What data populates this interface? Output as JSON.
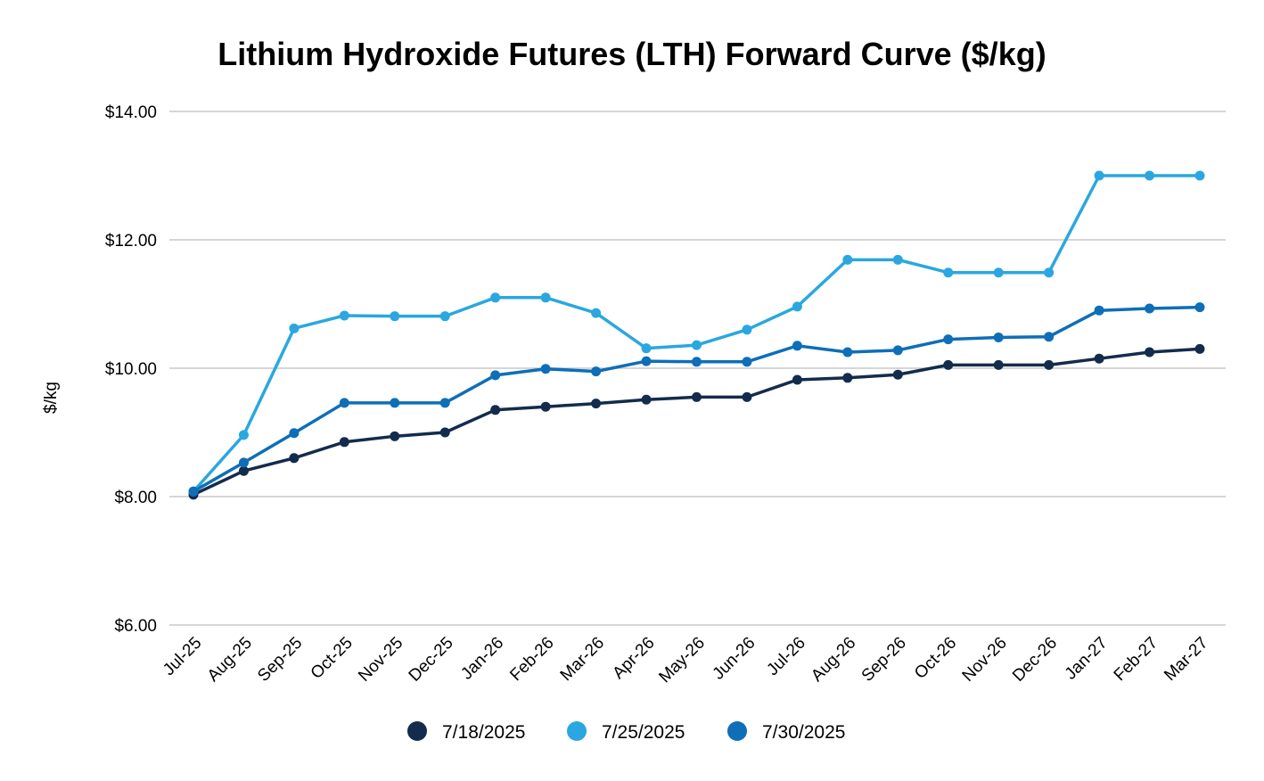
{
  "chart_data": {
    "type": "line",
    "title": "Lithium Hydroxide Futures (LTH) Forward Curve ($/kg)",
    "xlabel": "",
    "ylabel": "$/kg",
    "ylim": [
      6,
      14
    ],
    "yticks": [
      6,
      8,
      10,
      12,
      14
    ],
    "ytick_labels": [
      "$6.00",
      "$8.00",
      "$10.00",
      "$12.00",
      "$14.00"
    ],
    "grid": true,
    "legend_position": "bottom",
    "categories": [
      "Jul-25",
      "Aug-25",
      "Sep-25",
      "Oct-25",
      "Nov-25",
      "Dec-25",
      "Jan-26",
      "Feb-26",
      "Mar-26",
      "Apr-26",
      "May-26",
      "Jun-26",
      "Jul-26",
      "Aug-26",
      "Sep-26",
      "Oct-26",
      "Nov-26",
      "Dec-26",
      "Jan-27",
      "Feb-27",
      "Mar-27"
    ],
    "series": [
      {
        "name": "7/18/2025",
        "color": "#132c4d",
        "values": [
          8.03,
          8.4,
          8.6,
          8.85,
          8.94,
          9.0,
          9.35,
          9.4,
          9.45,
          9.51,
          9.55,
          9.55,
          9.82,
          9.85,
          9.9,
          10.05,
          10.05,
          10.05,
          10.15,
          10.25,
          10.3
        ]
      },
      {
        "name": "7/25/2025",
        "color": "#2aa7e0",
        "values": [
          8.08,
          8.96,
          10.62,
          10.82,
          10.81,
          10.81,
          11.1,
          11.1,
          10.86,
          10.31,
          10.36,
          10.6,
          10.96,
          11.69,
          11.69,
          11.49,
          11.49,
          11.49,
          13.0,
          13.0,
          13.0
        ]
      },
      {
        "name": "7/30/2025",
        "color": "#0e6eb8",
        "values": [
          8.08,
          8.53,
          8.99,
          9.46,
          9.46,
          9.46,
          9.89,
          9.99,
          9.95,
          10.11,
          10.1,
          10.1,
          10.35,
          10.25,
          10.28,
          10.45,
          10.48,
          10.49,
          10.9,
          10.93,
          10.95
        ]
      }
    ]
  },
  "colors": {
    "gridline": "#c8c8c8",
    "text": "#000000"
  }
}
